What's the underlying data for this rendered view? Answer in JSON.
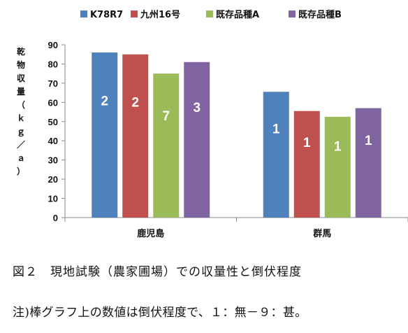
{
  "chart_data": {
    "type": "bar",
    "categories": [
      "鹿児島",
      "群馬"
    ],
    "series": [
      {
        "name": "K78R7",
        "color": "#4f81bd",
        "values": [
          86,
          65.5
        ],
        "labels": [
          "2",
          "1"
        ]
      },
      {
        "name": "九州16号",
        "color": "#c0504d",
        "values": [
          85,
          55.5
        ],
        "labels": [
          "2",
          "1"
        ]
      },
      {
        "name": "既存品種A",
        "color": "#9bbb59",
        "values": [
          75,
          52.5
        ],
        "labels": [
          "7",
          "1"
        ]
      },
      {
        "name": "既存品種B",
        "color": "#8064a2",
        "values": [
          81,
          57
        ],
        "labels": [
          "3",
          "1"
        ]
      }
    ],
    "ylabel": "乾物収量（ｋｇ／ａ）",
    "ylim": [
      0,
      90
    ],
    "yticks": [
      "0",
      "10",
      "20",
      "30",
      "40",
      "50",
      "60",
      "70",
      "80",
      "90"
    ],
    "grid": false,
    "legend_position": "top"
  },
  "caption": {
    "line1": "図２　現地試験（農家圃場）での収量性と倒伏程度",
    "line2": "注)棒グラフ上の数値は倒伏程度で、１：無－９：甚。"
  }
}
